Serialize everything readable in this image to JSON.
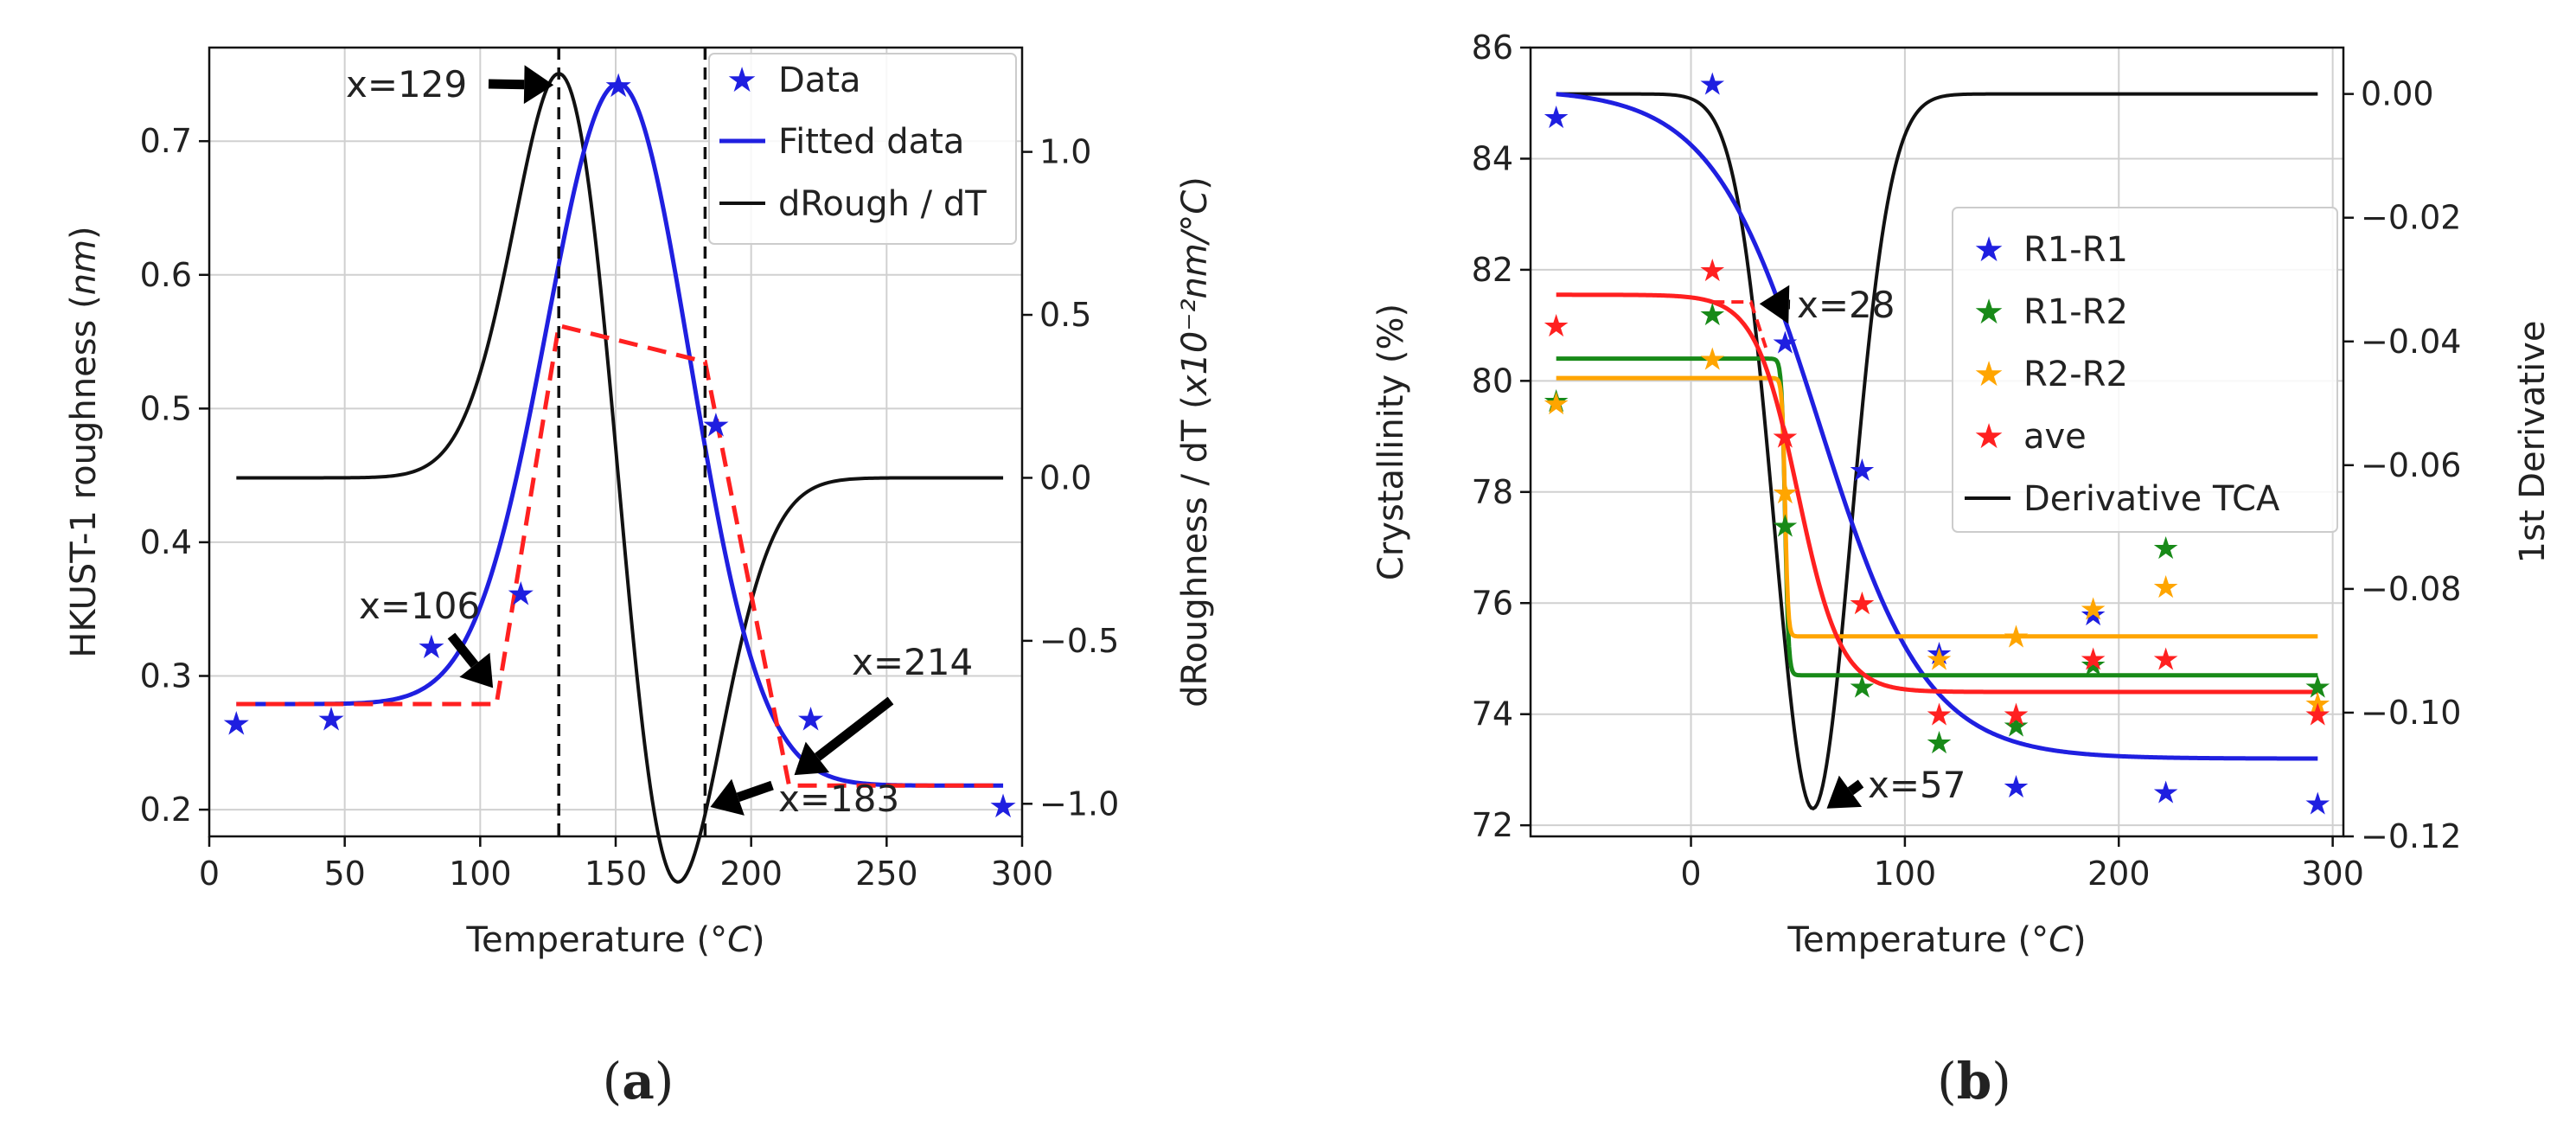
{
  "chart_data": [
    {
      "type": "line",
      "panel_label": "a",
      "xlabel": "Temperature",
      "xlabel_unit": "oC",
      "ylabel": "HKUST-1 roughness",
      "ylabel_unit": "nm",
      "y2label": "dRoughness / dT",
      "y2label_unit": "x10-2nm/oC",
      "xlim": [
        0,
        300
      ],
      "ylim": [
        0.18,
        0.77
      ],
      "y2lim": [
        -1.1,
        1.32
      ],
      "xticks": [
        "0",
        "50",
        "100",
        "150",
        "200",
        "250",
        "300"
      ],
      "yticks": [
        "0.2",
        "0.3",
        "0.4",
        "0.5",
        "0.6",
        "0.7"
      ],
      "y2ticks": [
        "−1.0",
        "−0.5",
        "0.0",
        "0.5",
        "1.0"
      ],
      "grid": true,
      "legend_position": "top-right",
      "series": [
        {
          "name": "Data",
          "kind": "scatter",
          "axis": "left",
          "color": "#1f1fe0",
          "x": [
            10,
            45,
            82,
            115,
            151,
            187,
            222,
            293
          ],
          "y": [
            0.265,
            0.268,
            0.322,
            0.362,
            0.742,
            0.488,
            0.268,
            0.203
          ]
        },
        {
          "name": "Fitted data",
          "kind": "gaussian",
          "axis": "left",
          "color": "#1f1fe0",
          "baseline": 0.279,
          "end_baseline": 0.218,
          "amplitude": 0.464,
          "center": 151,
          "sigma": 26.5
        },
        {
          "name": "dRough / dT",
          "kind": "gaussian-derivative",
          "axis": "right",
          "color": "#111111",
          "center": 151,
          "sigma": 22,
          "peak": 1.24
        },
        {
          "name": "",
          "kind": "piecewise",
          "axis": "left",
          "color": "#ff2020",
          "x": [
            10,
            106,
            129,
            183,
            214,
            293
          ],
          "y": [
            0.279,
            0.279,
            0.562,
            0.535,
            0.218,
            0.218
          ]
        }
      ],
      "vlines": [
        129,
        183
      ],
      "annotations": [
        {
          "text": "x=129",
          "x": 129,
          "y": 0.742
        },
        {
          "text": "x=106",
          "x": 106,
          "y": 0.282
        },
        {
          "text": "x=183",
          "x": 183,
          "y": 0.202
        },
        {
          "text": "x=214",
          "x": 214,
          "y": 0.222
        }
      ]
    },
    {
      "type": "line",
      "panel_label": "b",
      "xlabel": "Temperature",
      "xlabel_unit": "oC",
      "ylabel": "Crystallinity (%)",
      "y2label": "1st Derivative",
      "xlim": [
        -75,
        305
      ],
      "ylim": [
        71.8,
        86.0
      ],
      "y2lim": [
        -0.12,
        0.0075
      ],
      "xticks": [
        "0",
        "100",
        "200",
        "300"
      ],
      "yticks": [
        "72",
        "74",
        "76",
        "78",
        "80",
        "82",
        "84",
        "86"
      ],
      "y2ticks": [
        "0.00",
        "−0.02",
        "−0.04",
        "−0.06",
        "−0.08",
        "−0.10",
        "−0.12"
      ],
      "grid": true,
      "legend_position": "center-right",
      "data_x": [
        -63,
        10,
        44,
        80,
        116,
        152,
        188,
        222,
        293
      ],
      "series": [
        {
          "name": "R1-R1",
          "color": "#1f1fe0",
          "y": [
            84.75,
            85.35,
            80.7,
            78.4,
            75.1,
            72.7,
            75.8,
            72.6,
            72.4
          ],
          "fit": {
            "top": 85.25,
            "bottom": 73.2,
            "center": 60,
            "width": 25
          }
        },
        {
          "name": "R1-R2",
          "color": "#188a18",
          "y": [
            79.65,
            81.2,
            77.4,
            74.5,
            73.5,
            73.8,
            74.9,
            77.0,
            74.5
          ],
          "fit": {
            "top": 80.4,
            "bottom": 74.7,
            "center": 44,
            "width": 0.8
          }
        },
        {
          "name": "R2-R2",
          "color": "#ffa500",
          "y": [
            79.6,
            80.4,
            78.0,
            76.0,
            75.0,
            75.4,
            75.9,
            76.3,
            74.2
          ],
          "fit": {
            "top": 80.05,
            "bottom": 75.4,
            "center": 44,
            "width": 0.7
          }
        },
        {
          "name": "ave",
          "color": "#ff2020",
          "y": [
            81.0,
            82.0,
            79.0,
            76.0,
            74.0,
            74.0,
            75.0,
            75.0,
            74.0
          ],
          "fit": {
            "top": 81.55,
            "bottom": 74.4,
            "center": 50,
            "width": 10
          }
        },
        {
          "name": "Derivative TCA",
          "color": "#111111",
          "kind": "derivative",
          "center": 57,
          "sigma": 18,
          "peak": -0.1155
        }
      ],
      "annotations": [
        {
          "text": "x=28",
          "x": 28,
          "y": 81.45
        },
        {
          "text": "x=57",
          "x": 57,
          "y": 72.4
        }
      ]
    }
  ]
}
